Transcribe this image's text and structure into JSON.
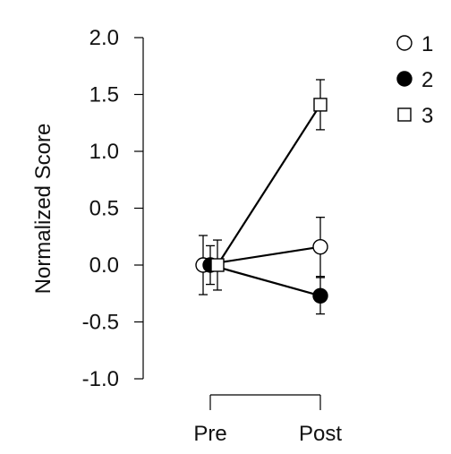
{
  "chart_data": {
    "type": "line",
    "title": "",
    "xlabel": "",
    "ylabel": "Normalized Score",
    "categories": [
      "Pre",
      "Post"
    ],
    "ylim": [
      -1.0,
      2.0
    ],
    "yticks": [
      "2.0",
      "1.5",
      "1.0",
      "0.5",
      "0.0",
      "-0.5",
      "-1.0"
    ],
    "ytick_values": [
      2.0,
      1.5,
      1.0,
      0.5,
      0.0,
      -0.5,
      -1.0
    ],
    "grid": false,
    "legend_position": "top-right",
    "series": [
      {
        "name": "1",
        "marker": "open-circle",
        "values": [
          0.0,
          0.16
        ],
        "errors": [
          0.26,
          0.26
        ]
      },
      {
        "name": "2",
        "marker": "filled-circle",
        "values": [
          0.0,
          -0.27
        ],
        "errors": [
          0.17,
          0.16
        ]
      },
      {
        "name": "3",
        "marker": "open-square",
        "values": [
          0.0,
          1.41
        ],
        "errors": [
          0.22,
          0.22
        ]
      }
    ]
  }
}
